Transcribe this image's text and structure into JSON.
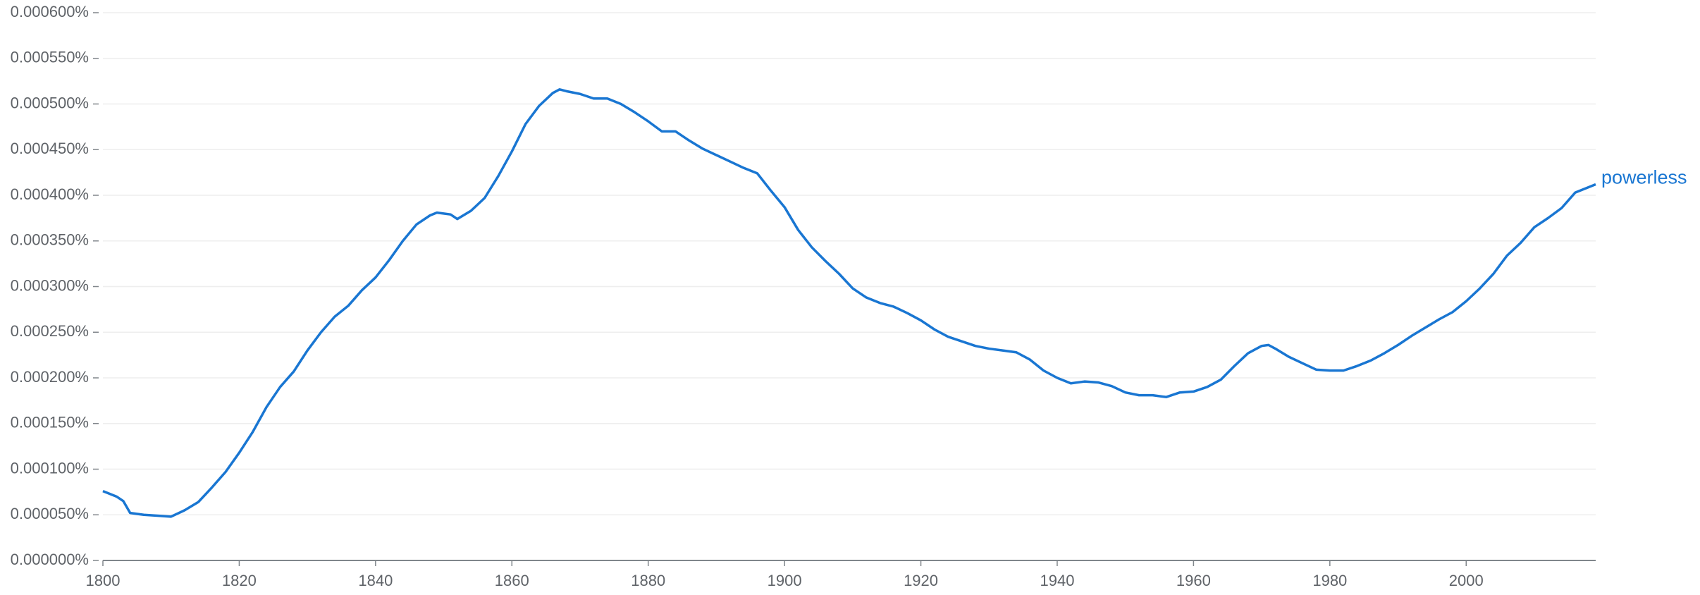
{
  "chart_data": {
    "type": "line",
    "x": [
      1800,
      1802,
      1803,
      1804,
      1806,
      1808,
      1810,
      1812,
      1814,
      1816,
      1818,
      1820,
      1822,
      1824,
      1826,
      1828,
      1830,
      1832,
      1834,
      1836,
      1838,
      1840,
      1842,
      1844,
      1846,
      1848,
      1849,
      1851,
      1852,
      1854,
      1856,
      1858,
      1860,
      1862,
      1864,
      1866,
      1867,
      1868,
      1870,
      1872,
      1874,
      1876,
      1878,
      1880,
      1882,
      1884,
      1886,
      1888,
      1890,
      1892,
      1894,
      1896,
      1898,
      1900,
      1902,
      1904,
      1906,
      1908,
      1910,
      1912,
      1914,
      1916,
      1918,
      1920,
      1922,
      1924,
      1926,
      1928,
      1930,
      1932,
      1934,
      1936,
      1938,
      1940,
      1942,
      1944,
      1946,
      1948,
      1950,
      1952,
      1954,
      1956,
      1958,
      1960,
      1962,
      1964,
      1966,
      1968,
      1970,
      1971,
      1972,
      1974,
      1976,
      1978,
      1980,
      1982,
      1984,
      1986,
      1988,
      1990,
      1992,
      1994,
      1996,
      1998,
      2000,
      2002,
      2004,
      2006,
      2008,
      2010,
      2012,
      2014,
      2016,
      2018,
      2019
    ],
    "series": [
      {
        "name": "powerless",
        "color": "#1976d2",
        "values": [
          7.6e-05,
          7e-05,
          6.5e-05,
          5.2e-05,
          5e-05,
          4.9e-05,
          4.8e-05,
          5.5e-05,
          6.4e-05,
          8e-05,
          9.7e-05,
          0.000118,
          0.000141,
          0.000168,
          0.00019,
          0.000207,
          0.00023,
          0.00025,
          0.000267,
          0.000279,
          0.000296,
          0.00031,
          0.000329,
          0.00035,
          0.000368,
          0.000378,
          0.000381,
          0.000379,
          0.000374,
          0.000383,
          0.000397,
          0.000421,
          0.000448,
          0.000478,
          0.000498,
          0.000512,
          0.000516,
          0.000514,
          0.000511,
          0.000506,
          0.000506,
          0.0005,
          0.000491,
          0.000481,
          0.00047,
          0.00047,
          0.00046,
          0.000451,
          0.000444,
          0.000437,
          0.00043,
          0.000424,
          0.000405,
          0.000387,
          0.000362,
          0.000343,
          0.000328,
          0.000314,
          0.000298,
          0.000288,
          0.000282,
          0.000278,
          0.000271,
          0.000263,
          0.000253,
          0.000245,
          0.00024,
          0.000235,
          0.000232,
          0.00023,
          0.000228,
          0.00022,
          0.000208,
          0.0002,
          0.000194,
          0.000196,
          0.000195,
          0.000191,
          0.000184,
          0.000181,
          0.000181,
          0.000179,
          0.000184,
          0.000185,
          0.00019,
          0.000198,
          0.000213,
          0.000227,
          0.000235,
          0.000236,
          0.000232,
          0.000223,
          0.000216,
          0.000209,
          0.000208,
          0.000208,
          0.000213,
          0.000219,
          0.000227,
          0.000236,
          0.000246,
          0.000255,
          0.000264,
          0.000272,
          0.000284,
          0.000298,
          0.000314,
          0.000334,
          0.000348,
          0.000365,
          0.000375,
          0.000386,
          0.000403,
          0.000409,
          0.000412
        ]
      }
    ],
    "xlim": [
      1800,
      2019
    ],
    "xticks": [
      1800,
      1820,
      1840,
      1860,
      1880,
      1900,
      1920,
      1940,
      1960,
      1980,
      2000
    ],
    "ylim": [
      0,
      0.0006
    ],
    "yticks": [
      {
        "value": 0,
        "label": "0.000000%"
      },
      {
        "value": 5e-05,
        "label": "0.000050%"
      },
      {
        "value": 0.0001,
        "label": "0.000100%"
      },
      {
        "value": 0.00015,
        "label": "0.000150%"
      },
      {
        "value": 0.0002,
        "label": "0.000200%"
      },
      {
        "value": 0.00025,
        "label": "0.000250%"
      },
      {
        "value": 0.0003,
        "label": "0.000300%"
      },
      {
        "value": 0.00035,
        "label": "0.000350%"
      },
      {
        "value": 0.0004,
        "label": "0.000400%"
      },
      {
        "value": 0.00045,
        "label": "0.000450%"
      },
      {
        "value": 0.0005,
        "label": "0.000500%"
      },
      {
        "value": 0.00055,
        "label": "0.000550%"
      },
      {
        "value": 0.0006,
        "label": "0.000600%"
      }
    ],
    "grid": true
  }
}
